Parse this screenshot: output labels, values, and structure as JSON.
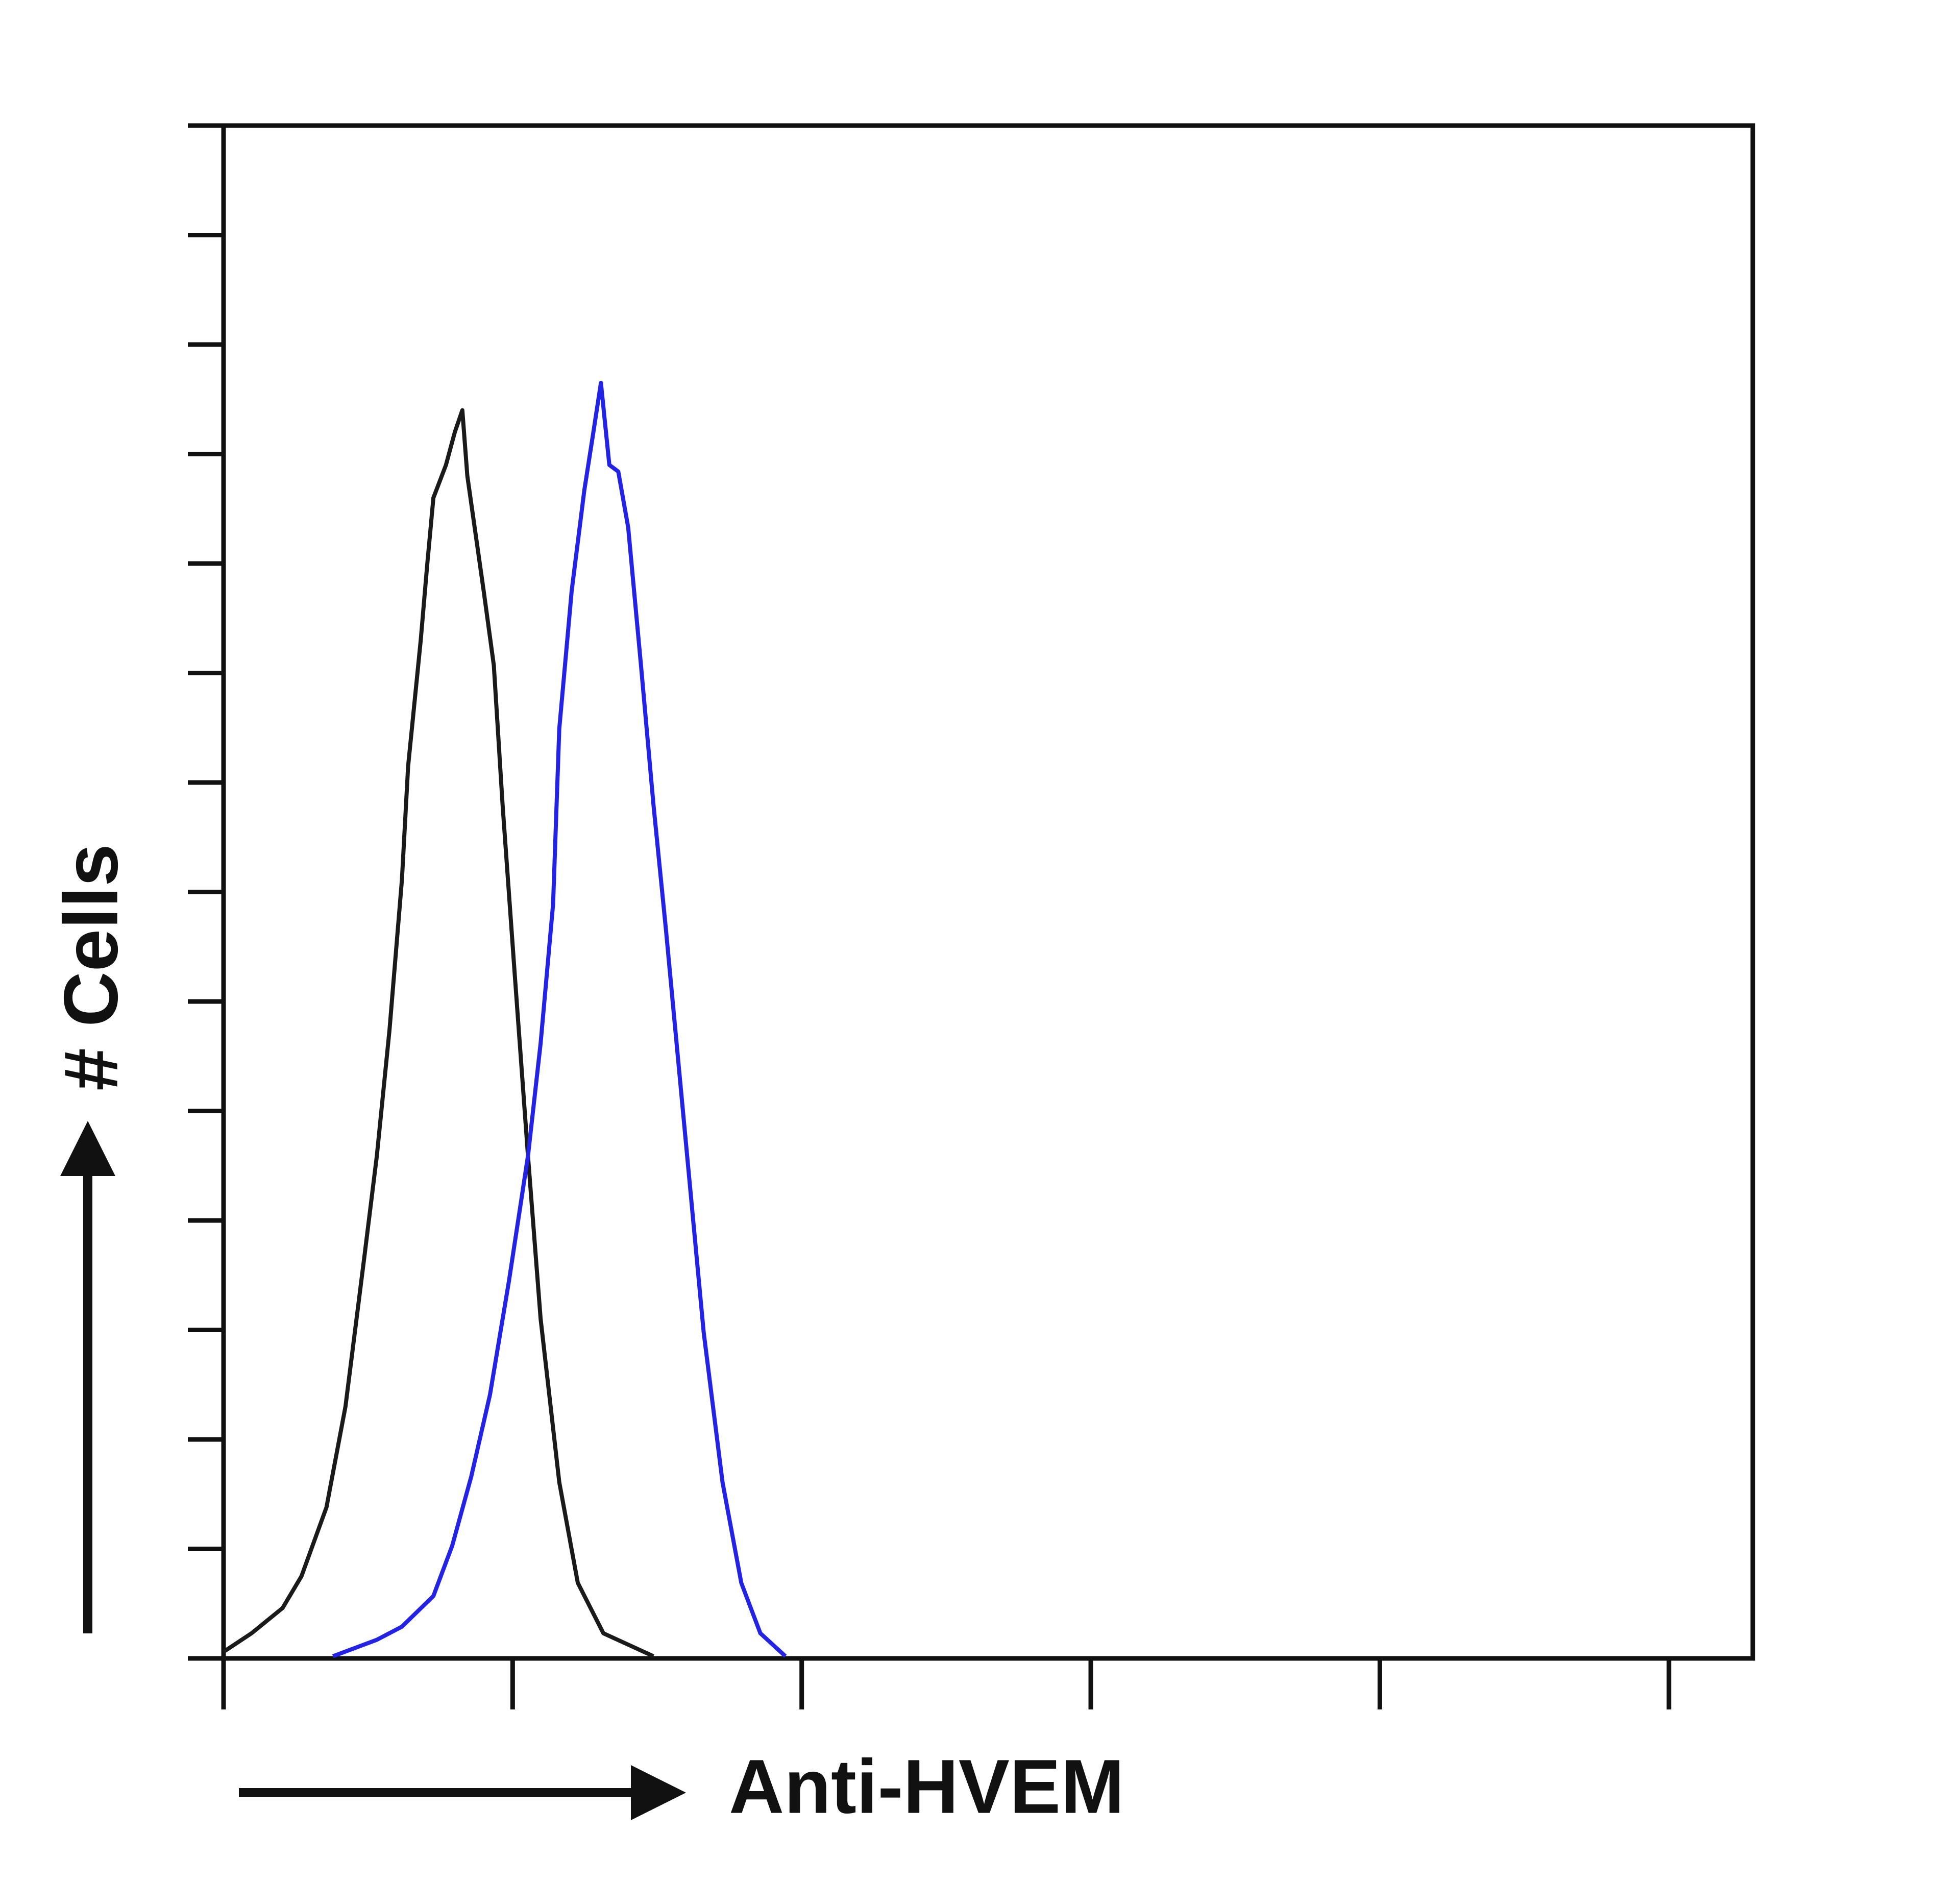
{
  "chart_data": {
    "type": "line",
    "xlabel": "Anti-HVEM",
    "ylabel": "# Cells",
    "xscale": "log",
    "xlim": [
      1,
      195000
    ],
    "xticks": [
      1,
      10,
      100,
      1000,
      10000,
      100000
    ],
    "ylim": [
      0,
      14
    ],
    "yticks": [
      0,
      1,
      2,
      3,
      4,
      5,
      6,
      7,
      8,
      9,
      10,
      11,
      12,
      13,
      14
    ],
    "series": [
      {
        "color": "#1a1a1a",
        "x": [
          1,
          1.25,
          1.6,
          1.86,
          2.27,
          2.64,
          3.07,
          3.39,
          3.75,
          4.14,
          4.35,
          4.81,
          5.06,
          5.32,
          5.88,
          6.31,
          6.7,
          6.97,
          7.94,
          8.61,
          9.23,
          10.2,
          11.3,
          12.5,
          14.5,
          16.8,
          20.6,
          30.7
        ],
        "values": [
          0.06,
          0.23,
          0.46,
          0.75,
          1.38,
          2.3,
          3.67,
          4.59,
          5.74,
          7.11,
          8.15,
          9.3,
          9.98,
          10.6,
          10.9,
          11.2,
          11.4,
          10.8,
          9.75,
          9.07,
          7.8,
          6.2,
          4.59,
          3.1,
          1.61,
          0.69,
          0.23,
          0.02
        ]
      },
      {
        "color": "#2323e6",
        "x": [
          2.39,
          3.39,
          4.14,
          5.32,
          6.18,
          7.19,
          8.35,
          9.7,
          11.3,
          12.5,
          13.8,
          14.5,
          16,
          17.7,
          19,
          20.2,
          21.6,
          23.2,
          25.1,
          27.8,
          30.7,
          33.9,
          39.4,
          45.8,
          53.2,
          61.8,
          71.9,
          87.8
        ],
        "values": [
          0.02,
          0.17,
          0.29,
          0.57,
          1.03,
          1.66,
          2.41,
          3.44,
          4.59,
          5.62,
          6.89,
          8.49,
          9.75,
          10.67,
          11.19,
          11.65,
          10.9,
          10.84,
          10.33,
          9.07,
          7.8,
          6.66,
          4.82,
          2.98,
          1.61,
          0.69,
          0.23,
          0.02
        ]
      }
    ]
  }
}
